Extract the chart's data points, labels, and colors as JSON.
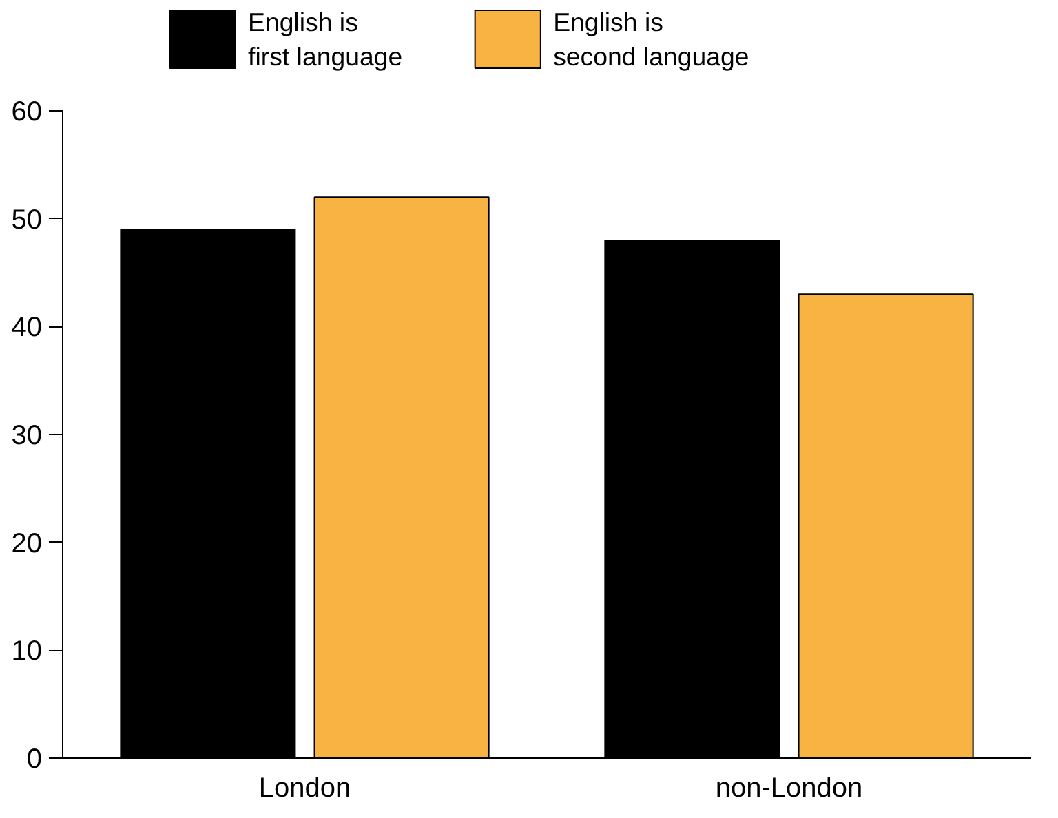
{
  "chart_data": {
    "type": "bar",
    "categories": [
      "London",
      "non-London"
    ],
    "series": [
      {
        "name": "English is\nfirst language",
        "color": "#000000",
        "values": [
          49,
          48
        ]
      },
      {
        "name": "English is\nsecond language",
        "color": "#f9b342",
        "values": [
          52,
          43
        ]
      }
    ],
    "ylim": [
      0,
      60
    ],
    "yticks": [
      0,
      10,
      20,
      30,
      40,
      50,
      60
    ],
    "grid": false,
    "legend": "top"
  }
}
